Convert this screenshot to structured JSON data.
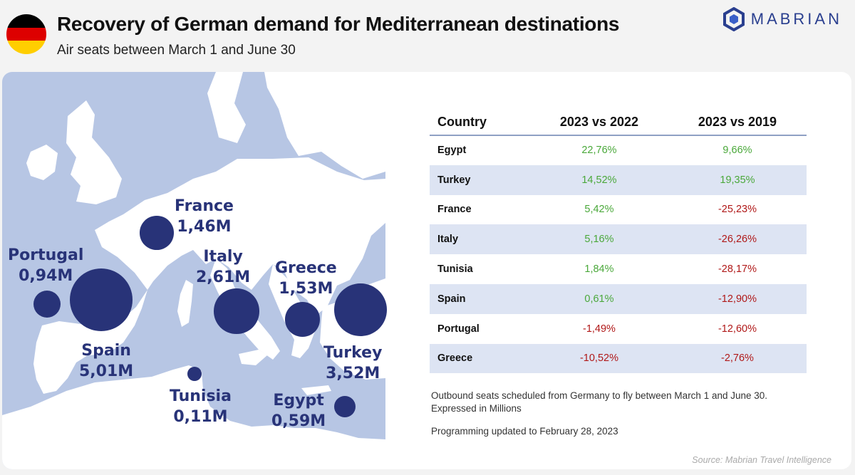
{
  "header": {
    "title": "Recovery of German demand for Mediterranean destinations",
    "subtitle": "Air seats between March 1 and June 30",
    "logo_text": "MABRIAN",
    "flag_colors": [
      "#000000",
      "#dd0000",
      "#ffce00"
    ]
  },
  "colors": {
    "bubble": "#283378",
    "positive": "#4aa83a",
    "negative": "#b01818",
    "sea": "#b7c6e4",
    "row_shade": "#dde4f3"
  },
  "chart_data": [
    {
      "type": "bubble-map",
      "unit": "M",
      "points": [
        {
          "name": "France",
          "label": "1,46M",
          "value": 1.46
        },
        {
          "name": "Portugal",
          "label": "0,94M",
          "value": 0.94
        },
        {
          "name": "Italy",
          "label": "2,61M",
          "value": 2.61
        },
        {
          "name": "Greece",
          "label": "1,53M",
          "value": 1.53
        },
        {
          "name": "Spain",
          "label": "5,01M",
          "value": 5.01
        },
        {
          "name": "Turkey",
          "label": "3,52M",
          "value": 3.52
        },
        {
          "name": "Tunisia",
          "label": "0,11M",
          "value": 0.11
        },
        {
          "name": "Egypt",
          "label": "0,59M",
          "value": 0.59
        }
      ]
    },
    {
      "type": "table",
      "columns": [
        "Country",
        "2023 vs 2022",
        "2023 vs 2019"
      ],
      "rows": [
        {
          "country": "Egypt",
          "v2022": "22,76%",
          "v2019": "9,66%"
        },
        {
          "country": "Turkey",
          "v2022": "14,52%",
          "v2019": "19,35%"
        },
        {
          "country": "France",
          "v2022": "5,42%",
          "v2019": "-25,23%"
        },
        {
          "country": "Italy",
          "v2022": "5,16%",
          "v2019": "-26,26%"
        },
        {
          "country": "Tunisia",
          "v2022": "1,84%",
          "v2019": "-28,17%"
        },
        {
          "country": "Spain",
          "v2022": "0,61%",
          "v2019": "-12,90%"
        },
        {
          "country": "Portugal",
          "v2022": "-1,49%",
          "v2019": "-12,60%"
        },
        {
          "country": "Greece",
          "v2022": "-10,52%",
          "v2019": "-2,76%"
        }
      ]
    }
  ],
  "notes": {
    "line1": "Outbound seats scheduled from Germany to fly between March 1 and June 30.",
    "line2": "Expressed in Millions",
    "line3": "Programming updated to February 28, 2023",
    "source": "Source: Mabrian Travel Intelligence"
  }
}
